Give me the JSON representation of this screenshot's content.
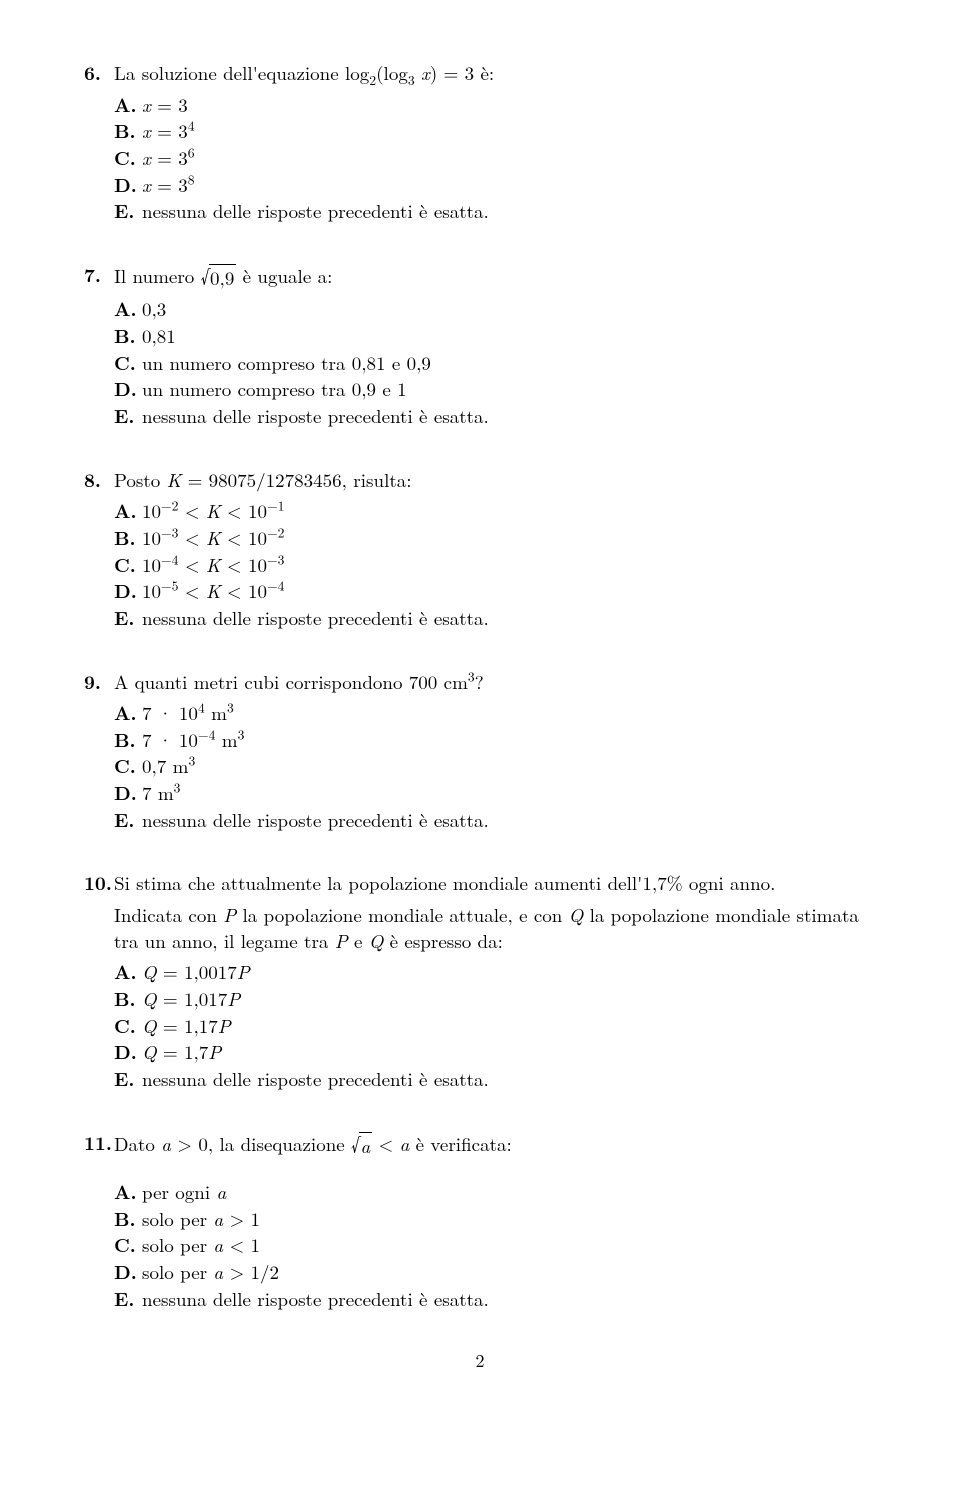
{
  "page_number": "2",
  "questions": [
    {
      "number": "6.",
      "stem_html": "La soluzione dell'equazione log<sub>2</sub>(log<sub>3</sub> <span class=\"math-i\">x</span>) = 3 è:",
      "options": [
        {
          "letter": "A.",
          "html": "<span class=\"math-i\">x</span> = 3"
        },
        {
          "letter": "B.",
          "html": "<span class=\"math-i\">x</span> = 3<sup>4</sup>"
        },
        {
          "letter": "C.",
          "html": "<span class=\"math-i\">x</span> = 3<sup>6</sup>"
        },
        {
          "letter": "D.",
          "html": "<span class=\"math-i\">x</span> = 3<sup>8</sup>"
        },
        {
          "letter": "E.",
          "html": "nessuna delle risposte precedenti è esatta."
        }
      ]
    },
    {
      "number": "7.",
      "stem_html": "Il numero <span class=\"sqrt\"><span class=\"sqrt-sym\">√</span><span class=\"sqrt-body\">0,9</span></span> è uguale a:",
      "options": [
        {
          "letter": "A.",
          "html": "0,3"
        },
        {
          "letter": "B.",
          "html": "0,81"
        },
        {
          "letter": "C.",
          "html": "un numero compreso tra 0,81 e 0,9"
        },
        {
          "letter": "D.",
          "html": "un numero compreso tra 0,9 e 1"
        },
        {
          "letter": "E.",
          "html": "nessuna delle risposte precedenti è esatta."
        }
      ]
    },
    {
      "number": "8.",
      "stem_html": "Posto <span class=\"math-i\">K</span> = 98075/12783456, risulta:",
      "options": [
        {
          "letter": "A.",
          "html": "10<sup>&minus;2</sup> &lt; <span class=\"math-i\">K</span> &lt; 10<sup>&minus;1</sup>"
        },
        {
          "letter": "B.",
          "html": "10<sup>&minus;3</sup> &lt; <span class=\"math-i\">K</span> &lt; 10<sup>&minus;2</sup>"
        },
        {
          "letter": "C.",
          "html": "10<sup>&minus;4</sup> &lt; <span class=\"math-i\">K</span> &lt; 10<sup>&minus;3</sup>"
        },
        {
          "letter": "D.",
          "html": "10<sup>&minus;5</sup> &lt; <span class=\"math-i\">K</span> &lt; 10<sup>&minus;4</sup>"
        },
        {
          "letter": "E.",
          "html": "nessuna delle risposte precedenti è esatta."
        }
      ]
    },
    {
      "number": "9.",
      "stem_html": "A quanti metri cubi corrispondono 700 cm<sup>3</sup>?",
      "options": [
        {
          "letter": "A.",
          "html": "7 · 10<sup>4</sup> m<sup>3</sup>"
        },
        {
          "letter": "B.",
          "html": "7 · 10<sup>&minus;4</sup> m<sup>3</sup>"
        },
        {
          "letter": "C.",
          "html": "0,7 m<sup>3</sup>"
        },
        {
          "letter": "D.",
          "html": "7 m<sup>3</sup>"
        },
        {
          "letter": "E.",
          "html": "nessuna delle risposte precedenti è esatta."
        }
      ]
    },
    {
      "number": "10.",
      "stem_html": "Si stima che attualmente la popolazione mondiale aumenti dell'1,7% ogni anno.",
      "stem_extra_html": "Indicata con <span class=\"math-i\">P</span> la popolazione mondiale attuale, e con <span class=\"math-i\">Q</span> la popolazione mondiale stimata tra un anno, il legame tra <span class=\"math-i\">P</span> e <span class=\"math-i\">Q</span> è espresso da:",
      "options": [
        {
          "letter": "A.",
          "html": "<span class=\"math-i\">Q</span> = 1,0017<span class=\"math-i\">P</span>"
        },
        {
          "letter": "B.",
          "html": "<span class=\"math-i\">Q</span> = 1,017<span class=\"math-i\">P</span>"
        },
        {
          "letter": "C.",
          "html": "<span class=\"math-i\">Q</span> = 1,17<span class=\"math-i\">P</span>"
        },
        {
          "letter": "D.",
          "html": "<span class=\"math-i\">Q</span> = 1,7<span class=\"math-i\">P</span>"
        },
        {
          "letter": "E.",
          "html": "nessuna delle risposte precedenti è esatta."
        }
      ]
    },
    {
      "number": "11.",
      "stem_html": "Dato <span class=\"math-i\">a</span> &gt; 0, la disequazione <span class=\"sqrt\"><span class=\"sqrt-sym\">√</span><span class=\"sqrt-body\"><span class=\"math-i\">a</span></span></span> &lt; <span class=\"math-i\">a</span> è verificata:",
      "extra_gap": true,
      "options": [
        {
          "letter": "A.",
          "html": "per ogni <span class=\"math-i\">a</span>"
        },
        {
          "letter": "B.",
          "html": "solo per <span class=\"math-i\">a</span> &gt; 1"
        },
        {
          "letter": "C.",
          "html": "solo per <span class=\"math-i\">a</span> &lt; 1"
        },
        {
          "letter": "D.",
          "html": "solo per <span class=\"math-i\">a</span> &gt; 1/2"
        },
        {
          "letter": "E.",
          "html": "nessuna delle risposte precedenti è esatta."
        }
      ]
    }
  ]
}
